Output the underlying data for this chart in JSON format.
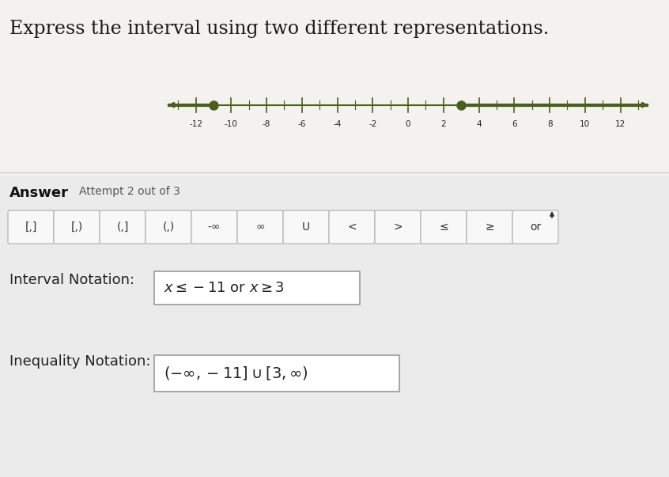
{
  "title": "Express the interval using two different representations.",
  "title_fontsize": 17,
  "title_color": "#1a1a1a",
  "background_color": "#f4f2ef",
  "lower_background_color": "#ebebeb",
  "number_line": {
    "xmin": -14,
    "xmax": 14,
    "ticks": [
      -12,
      -10,
      -8,
      -6,
      -4,
      -2,
      0,
      2,
      4,
      6,
      8,
      10,
      12
    ],
    "line_color": "#4a5e20",
    "dot_color": "#4a5e20",
    "dot1": -11,
    "dot2": 3
  },
  "answer_label": "Answer",
  "attempt_label": "Attempt 2 out of 3",
  "button_labels": [
    "[,]",
    "[,)",
    "(,]",
    "(,)",
    "-∞",
    "∞",
    "U",
    "<",
    ">",
    "≤",
    "≥",
    "or"
  ],
  "interval_label": "Interval Notation:",
  "inequality_label": "Inequality Notation:",
  "box_edge_color": "#aaaaaa",
  "button_bg": "#f8f8f8",
  "button_edge": "#bbbbbb",
  "text_color": "#222222"
}
